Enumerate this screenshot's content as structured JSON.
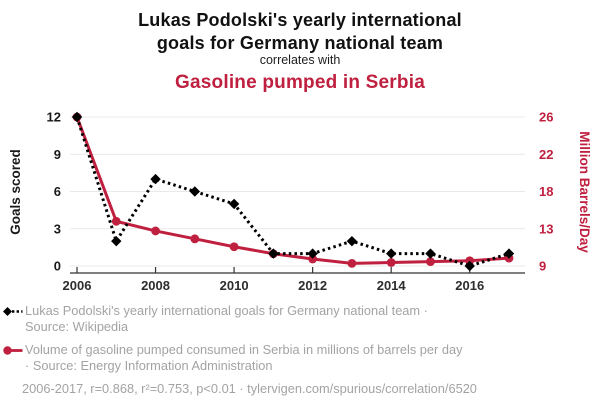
{
  "header": {
    "title_line1": "Lukas Podolski's yearly international",
    "title_line2": "goals for Germany national team",
    "connector": "correlates with",
    "subtitle": "Gasoline pumped in Serbia"
  },
  "chart_data": {
    "type": "line",
    "x": [
      2006,
      2007,
      2008,
      2009,
      2010,
      2011,
      2012,
      2013,
      2014,
      2015,
      2016,
      2017
    ],
    "x_ticks": [
      2006,
      2008,
      2010,
      2012,
      2014,
      2016
    ],
    "left_axis": {
      "label": "Goals scored",
      "ticks": [
        0,
        3,
        6,
        9,
        12
      ],
      "range": [
        0,
        12
      ],
      "color": "#1a1a1a"
    },
    "right_axis": {
      "label": "Million Barrels/Day",
      "ticks": [
        9,
        13,
        18,
        22,
        26
      ],
      "range": [
        9,
        26
      ],
      "color": "#c0203f"
    },
    "grid": true,
    "legend_position": "bottom",
    "series": [
      {
        "name": "Lukas Podolski's yearly international goals for Germany national team",
        "axis": "left",
        "color": "#000000",
        "line_style": "dashed",
        "marker": "diamond",
        "values": [
          12,
          2,
          7,
          6,
          5,
          1,
          1,
          2,
          1,
          1,
          0,
          1
        ]
      },
      {
        "name": "Volume of gasoline pumped consumed in Serbia",
        "axis": "right",
        "color": "#c0203f",
        "line_style": "solid",
        "marker": "circle",
        "values": [
          26,
          14.1,
          13,
          12.1,
          11.2,
          10.4,
          9.8,
          9.3,
          9.4,
          9.5,
          9.6,
          9.9
        ]
      }
    ]
  },
  "legend": {
    "items": [
      {
        "marker": "black-diamond-dashed",
        "line1": "Lukas Podolski's yearly international goals for Germany national team ·",
        "line2": "Source: Wikipedia"
      },
      {
        "marker": "red-circle-solid",
        "line1": "Volume of gasoline pumped consumed in Serbia in millions of barrels per day",
        "line2": "· Source: Energy Information Administration"
      }
    ]
  },
  "footer": {
    "stats": "2006-2017, r=0.868, r²=0.753, p<0.01 · tylervigen.com/spurious/correlation/6520"
  },
  "colors": {
    "accent_red": "#c0203f",
    "text_gray": "#a3a3a3",
    "grid": "#e9e9e9",
    "axis": "#333333"
  }
}
